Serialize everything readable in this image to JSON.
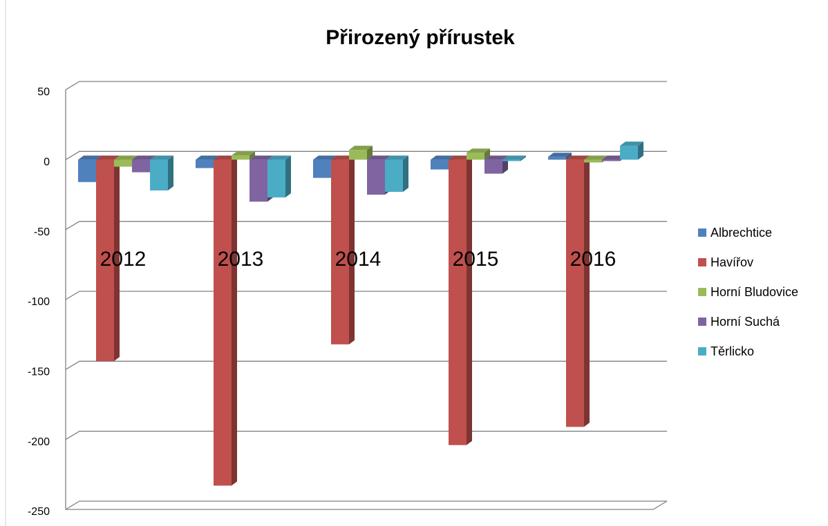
{
  "chart_data": {
    "type": "bar3d",
    "title": "Přirozený přírustek",
    "categories": [
      "2012",
      "2013",
      "2014",
      "2015",
      "2016"
    ],
    "series": [
      {
        "name": "Albrechtice",
        "color": "#4f81bd",
        "values": [
          -16,
          -6,
          -13,
          -7,
          2
        ]
      },
      {
        "name": "Havířov",
        "color": "#c0504d",
        "values": [
          -144,
          -233,
          -132,
          -204,
          -191
        ]
      },
      {
        "name": "Horní Bludovice",
        "color": "#9bbb59",
        "values": [
          -5,
          3,
          7,
          5,
          -2
        ]
      },
      {
        "name": "Horní Suchá",
        "color": "#8064a2",
        "values": [
          -9,
          -30,
          -25,
          -10,
          -1
        ]
      },
      {
        "name": "Těrlicko",
        "color": "#4bacc6",
        "values": [
          -22,
          -27,
          -23,
          -1,
          10
        ]
      }
    ],
    "ylim": [
      -250,
      50
    ],
    "yticks": [
      50,
      0,
      -50,
      -100,
      -150,
      -200,
      -250
    ],
    "grid": true,
    "legend": "right"
  }
}
